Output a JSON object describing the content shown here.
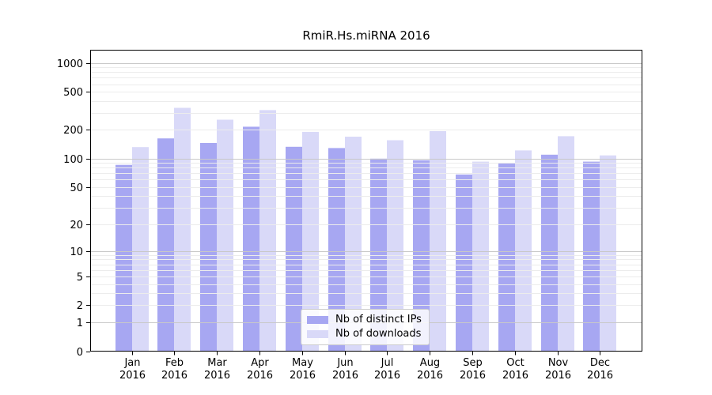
{
  "chart_data": {
    "type": "bar",
    "title": "RmiR.Hs.miRNA 2016",
    "categories": [
      "Jan",
      "Feb",
      "Mar",
      "Apr",
      "May",
      "Jun",
      "Jul",
      "Aug",
      "Sep",
      "Oct",
      "Nov",
      "Dec"
    ],
    "year_label": "2016",
    "series": [
      {
        "name": "Nb of distinct IPs",
        "color": "#a7a7f2",
        "values": [
          86,
          163,
          146,
          216,
          133,
          129,
          100,
          96,
          68,
          89,
          110,
          93
        ]
      },
      {
        "name": "Nb of downloads",
        "color": "#d9d9f8",
        "values": [
          132,
          340,
          256,
          322,
          191,
          170,
          156,
          194,
          93,
          122,
          172,
          108
        ]
      }
    ],
    "xlabel": "",
    "ylabel": "",
    "y_ticks": [
      0,
      1,
      2,
      5,
      10,
      20,
      50,
      100,
      200,
      500,
      1000
    ],
    "y_scale": "log10(1+v)",
    "ylim": [
      0,
      1200
    ],
    "grid": "horizontal, minor log steps light + decade lines darker, drawn over bars",
    "legend_position": "inside bottom-center",
    "colors": {
      "bar_distinct_ips": "#a7a7f2",
      "bar_downloads": "#d9d9f8",
      "minor_grid": "#ececec",
      "major_grid": "#c8c8c8",
      "axis": "#000000",
      "background": "#ffffff"
    }
  }
}
